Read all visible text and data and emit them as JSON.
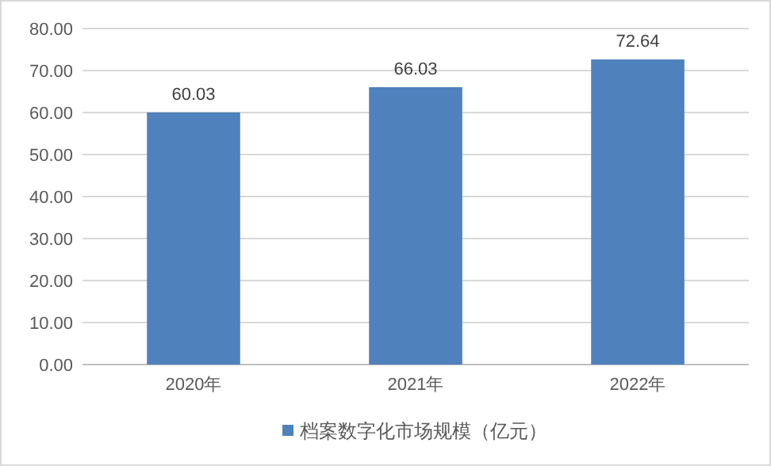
{
  "chart_data": {
    "type": "bar",
    "categories": [
      "2020年",
      "2021年",
      "2022年"
    ],
    "series": [
      {
        "name": "档案数字化市场规模（亿元）",
        "color": "#4f81bd",
        "values": [
          60.03,
          66.03,
          72.64
        ]
      }
    ],
    "ylim": [
      0,
      80
    ],
    "yticks": [
      {
        "value": 0,
        "label": "0.00"
      },
      {
        "value": 10,
        "label": "10.00"
      },
      {
        "value": 20,
        "label": "20.00"
      },
      {
        "value": 30,
        "label": "30.00"
      },
      {
        "value": 40,
        "label": "40.00"
      },
      {
        "value": 50,
        "label": "50.00"
      },
      {
        "value": 60,
        "label": "60.00"
      },
      {
        "value": 70,
        "label": "70.00"
      },
      {
        "value": 80,
        "label": "80.00"
      }
    ],
    "grid": "y",
    "data_labels": true,
    "legend": "bottom"
  }
}
